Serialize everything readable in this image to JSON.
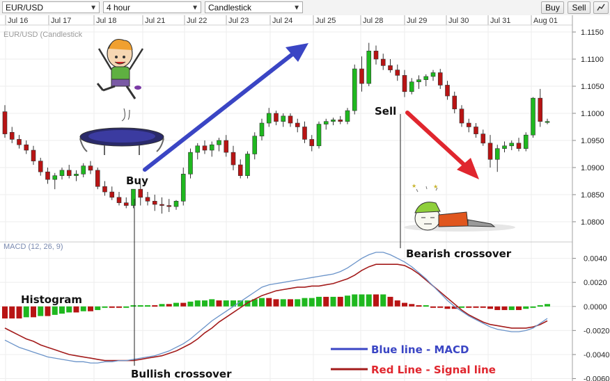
{
  "toolbar": {
    "symbol": "EUR/USD",
    "timeframe": "4 hour",
    "chart_style": "Candlestick",
    "buy_label": "Buy",
    "sell_label": "Sell"
  },
  "colors": {
    "up": "#1fb81f",
    "down": "#b81414",
    "macd_line": "#6a93c9",
    "signal_line": "#a31b1b",
    "arrow_buy": "#3a45c4",
    "arrow_sell": "#e0262e"
  },
  "chart_data": [
    {
      "type": "candlestick",
      "title": "EUR/USD (Candlestick",
      "x_labels": [
        "Jul 16",
        "Jul 17",
        "Jul 18",
        "Jul 21",
        "Jul 22",
        "Jul 23",
        "Jul 24",
        "Jul 25",
        "Jul 28",
        "Jul 29",
        "Jul 30",
        "Jul 31",
        "Aug 01"
      ],
      "y_ticks": [
        "1.1150",
        "1.1100",
        "1.1050",
        "1.1000",
        "1.0950",
        "1.0900",
        "1.0850",
        "1.0800"
      ],
      "ylim": [
        1.0773,
        1.1168
      ],
      "grid": true,
      "candles": [
        [
          1.1003,
          1.1015,
          1.0955,
          1.0962
        ],
        [
          1.0965,
          1.0975,
          1.0945,
          1.0952
        ],
        [
          1.0952,
          1.096,
          1.0935,
          1.0942
        ],
        [
          1.0942,
          1.095,
          1.0925,
          1.0932
        ],
        [
          1.0932,
          1.094,
          1.0905,
          1.0912
        ],
        [
          1.0912,
          1.0918,
          1.0885,
          1.0892
        ],
        [
          1.0892,
          1.09,
          1.087,
          1.0878
        ],
        [
          1.0878,
          1.089,
          1.086,
          1.0885
        ],
        [
          1.0885,
          1.09,
          1.0878,
          1.0895
        ],
        [
          1.0895,
          1.0905,
          1.088,
          1.0885
        ],
        [
          1.0885,
          1.0895,
          1.0875,
          1.0888
        ],
        [
          1.0888,
          1.0908,
          1.0882,
          1.0903
        ],
        [
          1.0903,
          1.0912,
          1.0888,
          1.0895
        ],
        [
          1.0895,
          1.09,
          1.086,
          1.0865
        ],
        [
          1.0865,
          1.0875,
          1.0848,
          1.0855
        ],
        [
          1.0855,
          1.0865,
          1.084,
          1.0845
        ],
        [
          1.0845,
          1.0855,
          1.083,
          1.0835
        ],
        [
          1.0835,
          1.0845,
          1.0825,
          1.083
        ],
        [
          1.083,
          1.086,
          1.0825,
          1.086
        ],
        [
          1.086,
          1.087,
          1.083,
          1.0845
        ],
        [
          1.0845,
          1.0855,
          1.083,
          1.0838
        ],
        [
          1.0838,
          1.085,
          1.082,
          1.0832
        ],
        [
          1.0832,
          1.0845,
          1.0815,
          1.083
        ],
        [
          1.083,
          1.0842,
          1.0818,
          1.0828
        ],
        [
          1.0828,
          1.084,
          1.0822,
          1.0838
        ],
        [
          1.0838,
          1.09,
          1.083,
          1.0888
        ],
        [
          1.0888,
          1.0935,
          1.088,
          1.0928
        ],
        [
          1.0928,
          1.0945,
          1.0915,
          1.094
        ],
        [
          1.094,
          1.095,
          1.0925,
          1.0932
        ],
        [
          1.0932,
          1.0948,
          1.092,
          1.0942
        ],
        [
          1.0942,
          1.0955,
          1.093,
          1.095
        ],
        [
          1.095,
          1.096,
          1.092,
          1.0928
        ],
        [
          1.0928,
          1.094,
          1.0895,
          1.0905
        ],
        [
          1.0905,
          1.0915,
          1.088,
          1.0885
        ],
        [
          1.0885,
          1.093,
          1.088,
          1.0925
        ],
        [
          1.0925,
          1.0965,
          1.0915,
          1.0958
        ],
        [
          1.0958,
          1.099,
          1.095,
          1.0982
        ],
        [
          1.0982,
          1.101,
          1.0975,
          1.1
        ],
        [
          1.1,
          1.1005,
          1.0978,
          1.0985
        ],
        [
          1.0985,
          1.1,
          1.0975,
          1.0995
        ],
        [
          1.0995,
          1.1,
          1.0975,
          1.0982
        ],
        [
          1.0982,
          1.099,
          1.0965,
          1.0975
        ],
        [
          1.0975,
          1.0985,
          1.0945,
          1.0952
        ],
        [
          1.0952,
          1.096,
          1.093,
          1.094
        ],
        [
          1.094,
          1.0985,
          1.0935,
          1.098
        ],
        [
          1.098,
          1.099,
          1.097,
          1.0985
        ],
        [
          1.0985,
          1.0992,
          1.0978,
          1.0988
        ],
        [
          1.0988,
          1.0995,
          1.098,
          1.0985
        ],
        [
          1.0985,
          1.101,
          1.098,
          1.1005
        ],
        [
          1.1005,
          1.109,
          1.0998,
          1.1082
        ],
        [
          1.1082,
          1.1105,
          1.104,
          1.1055
        ],
        [
          1.1055,
          1.113,
          1.105,
          1.1115
        ],
        [
          1.1115,
          1.1125,
          1.109,
          1.11
        ],
        [
          1.11,
          1.111,
          1.108,
          1.1088
        ],
        [
          1.1088,
          1.11,
          1.1075,
          1.108
        ],
        [
          1.108,
          1.109,
          1.106,
          1.107
        ],
        [
          1.107,
          1.108,
          1.103,
          1.104
        ],
        [
          1.104,
          1.1065,
          1.1035,
          1.1058
        ],
        [
          1.1058,
          1.107,
          1.1045,
          1.1062
        ],
        [
          1.1062,
          1.1072,
          1.105,
          1.1068
        ],
        [
          1.1068,
          1.108,
          1.106,
          1.1075
        ],
        [
          1.1075,
          1.1082,
          1.1045,
          1.1052
        ],
        [
          1.1052,
          1.106,
          1.1025,
          1.1032
        ],
        [
          1.1032,
          1.104,
          1.1,
          1.1008
        ],
        [
          1.1008,
          1.1015,
          1.0975,
          1.0982
        ],
        [
          1.0982,
          1.099,
          1.0965,
          1.0975
        ],
        [
          1.0975,
          1.0982,
          1.0955,
          1.0962
        ],
        [
          1.0962,
          1.097,
          1.094,
          1.0945
        ],
        [
          1.0945,
          1.096,
          1.09,
          1.0915
        ],
        [
          1.0915,
          1.0942,
          1.0892,
          1.0935
        ],
        [
          1.0935,
          1.0948,
          1.0928,
          1.094
        ],
        [
          1.094,
          1.095,
          1.0932,
          1.0945
        ],
        [
          1.0945,
          1.0955,
          1.093,
          1.0935
        ],
        [
          1.0935,
          1.0965,
          1.093,
          1.096
        ],
        [
          1.096,
          1.103,
          1.0955,
          1.1028
        ],
        [
          1.1028,
          1.1045,
          1.0975,
          1.0985
        ],
        [
          1.0985,
          1.099,
          1.098,
          1.0985
        ]
      ]
    },
    {
      "type": "macd",
      "title": "MACD (12, 26, 9)",
      "y_ticks": [
        "0.0040",
        "0.0020",
        "0.0000",
        "-0.0020",
        "-0.0040",
        "-0.0060"
      ],
      "ylim": [
        -0.0062,
        0.0049
      ],
      "series": [
        {
          "name": "Blue line - MACD",
          "values": [
            -0.0028,
            -0.0031,
            -0.0034,
            -0.0036,
            -0.0038,
            -0.004,
            -0.0042,
            -0.0043,
            -0.0044,
            -0.0045,
            -0.0046,
            -0.0046,
            -0.0047,
            -0.0047,
            -0.0046,
            -0.0046,
            -0.0045,
            -0.0045,
            -0.0044,
            -0.0043,
            -0.0042,
            -0.0041,
            -0.0039,
            -0.0037,
            -0.0034,
            -0.0031,
            -0.0027,
            -0.0022,
            -0.0017,
            -0.0012,
            -0.0008,
            -0.0004,
            0.0,
            0.0004,
            0.0008,
            0.0012,
            0.0016,
            0.0018,
            0.0019,
            0.002,
            0.0021,
            0.0022,
            0.0023,
            0.0024,
            0.0025,
            0.0026,
            0.0027,
            0.0029,
            0.0032,
            0.0036,
            0.004,
            0.0043,
            0.0045,
            0.0045,
            0.0043,
            0.004,
            0.0037,
            0.0033,
            0.0028,
            0.0023,
            0.0017,
            0.0011,
            0.0005,
            0.0,
            -0.0004,
            -0.0008,
            -0.0011,
            -0.0014,
            -0.0017,
            -0.0019,
            -0.002,
            -0.0021,
            -0.0021,
            -0.002,
            -0.0018,
            -0.0014,
            -0.001
          ]
        },
        {
          "name": "Red Line - Signal line",
          "values": [
            -0.0018,
            -0.0021,
            -0.0024,
            -0.0027,
            -0.0029,
            -0.0032,
            -0.0034,
            -0.0036,
            -0.0038,
            -0.004,
            -0.0041,
            -0.0042,
            -0.0043,
            -0.0044,
            -0.0045,
            -0.0045,
            -0.0045,
            -0.0045,
            -0.0045,
            -0.0044,
            -0.0043,
            -0.0042,
            -0.0041,
            -0.0039,
            -0.0037,
            -0.0034,
            -0.0031,
            -0.0027,
            -0.0022,
            -0.0018,
            -0.0013,
            -0.0009,
            -0.0005,
            -0.0001,
            0.0003,
            0.0006,
            0.0009,
            0.0011,
            0.0013,
            0.0014,
            0.0015,
            0.0016,
            0.0016,
            0.0017,
            0.0017,
            0.0018,
            0.0019,
            0.0021,
            0.0023,
            0.0026,
            0.003,
            0.0033,
            0.0035,
            0.0035,
            0.0035,
            0.0035,
            0.0034,
            0.0031,
            0.0027,
            0.0022,
            0.0017,
            0.0012,
            0.0007,
            0.0002,
            -0.0003,
            -0.0007,
            -0.001,
            -0.0013,
            -0.0015,
            -0.0016,
            -0.0017,
            -0.0018,
            -0.0018,
            -0.0018,
            -0.0017,
            -0.0015,
            -0.0012
          ]
        }
      ]
    }
  ],
  "annotations": {
    "buy": "Buy",
    "sell": "Sell",
    "histogram": "Histogram",
    "bullish": "Bullish crossover",
    "bearish": "Bearish crossover",
    "legend_macd": "Blue line - MACD",
    "legend_signal": "Red Line - Signal line"
  }
}
